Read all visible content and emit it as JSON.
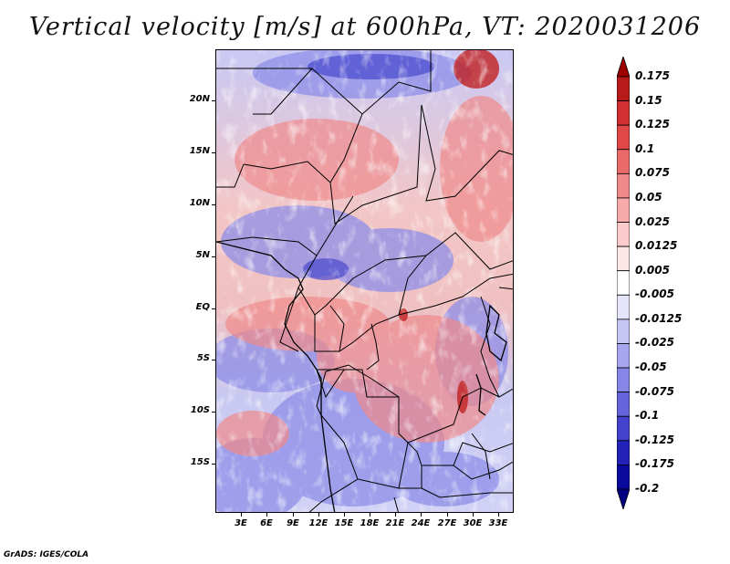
{
  "title": "Vertical velocity [m/s] at 600hPa, VT: 2020031206",
  "footer": "GrADS: IGES/COLA",
  "map": {
    "lat_labels": [
      "20N",
      "15N",
      "10N",
      "5N",
      "EQ",
      "5S",
      "10S",
      "15S"
    ],
    "lon_labels": [
      "3E",
      "6E",
      "9E",
      "12E",
      "15E",
      "18E",
      "21E",
      "24E",
      "27E",
      "30E",
      "33E"
    ]
  },
  "colorbar": {
    "labels": [
      "0.175",
      "0.15",
      "0.125",
      "0.1",
      "0.075",
      "0.05",
      "0.025",
      "0.0125",
      "0.005",
      "-0.005",
      "-0.0125",
      "-0.025",
      "-0.05",
      "-0.075",
      "-0.1",
      "-0.125",
      "-0.175",
      "-0.2"
    ],
    "colors": [
      "#9e0000",
      "#b81a1a",
      "#d03030",
      "#e04848",
      "#ea6a6a",
      "#f08a8a",
      "#f6aaaa",
      "#fbcaca",
      "#fde6e6",
      "#ffffff",
      "#e4e4fb",
      "#c6c6f4",
      "#a6a6ee",
      "#8686e6",
      "#6464dc",
      "#4242cc",
      "#2222b8",
      "#0a0a9c",
      "#000080"
    ]
  }
}
